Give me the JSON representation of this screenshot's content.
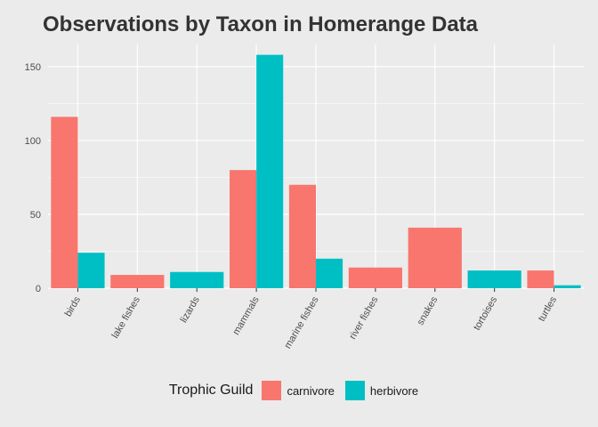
{
  "chart_data": {
    "type": "bar",
    "title": "Observations by Taxon in Homerange Data",
    "xlabel": "",
    "ylabel": "",
    "categories": [
      "birds",
      "lake fishes",
      "lizards",
      "mammals",
      "marine fishes",
      "river fishes",
      "snakes",
      "tortoises",
      "turtles"
    ],
    "series": [
      {
        "name": "carnivore",
        "color": "#f8766d",
        "values": [
          116,
          9,
          null,
          80,
          70,
          14,
          41,
          null,
          12
        ]
      },
      {
        "name": "herbivore",
        "color": "#00bfc4",
        "values": [
          24,
          null,
          11,
          158,
          20,
          null,
          null,
          12,
          2
        ]
      }
    ],
    "yticks": [
      0,
      50,
      100,
      150
    ],
    "ylim": [
      0,
      165
    ],
    "grid": true,
    "legend": {
      "title": "Trophic Guild",
      "position": "bottom"
    }
  }
}
